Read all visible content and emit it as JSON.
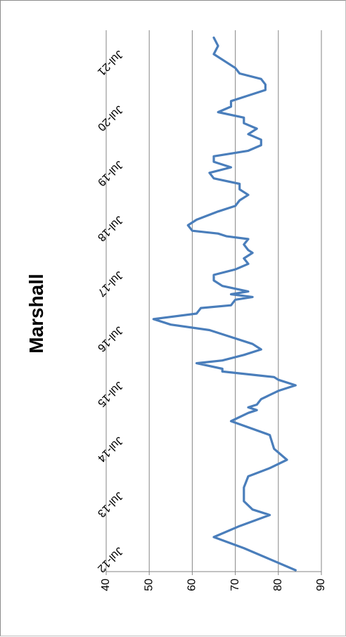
{
  "chart_data": {
    "type": "line",
    "title": "Marshall",
    "orientation": "rotated-90-clockwise",
    "value_axis": {
      "min": 40,
      "max": 90,
      "ticks": [
        40,
        50,
        60,
        70,
        80,
        90
      ]
    },
    "category_ticks": [
      "Jul-12",
      "Jul-13",
      "Jul-14",
      "Jul-15",
      "Jul-16",
      "Jul-17",
      "Jul-18",
      "Jul-19",
      "Jul-20",
      "Jul-21"
    ],
    "grid": true,
    "series_color": "#4a7ebb",
    "series": [
      {
        "x": [
          2012.0,
          2012.2,
          2012.4,
          2012.6,
          2012.8,
          2013.0,
          2013.1,
          2013.25,
          2013.5,
          2013.7,
          2013.85,
          2014.0,
          2014.2,
          2014.45,
          2014.7,
          2014.85,
          2014.9,
          2014.95,
          2015.0,
          2015.1,
          2015.25,
          2015.35,
          2015.45,
          2015.5,
          2015.6,
          2015.65,
          2015.75,
          2015.8,
          2015.9,
          2016.0,
          2016.1,
          2016.25,
          2016.35,
          2016.45,
          2016.55,
          2016.65,
          2016.75,
          2016.8,
          2016.9,
          2016.95,
          2017.0,
          2017.05,
          2017.15,
          2017.25,
          2017.35,
          2017.45,
          2017.55,
          2017.65,
          2017.75,
          2017.8,
          2017.9,
          2018.0,
          2018.05,
          2018.1,
          2018.15,
          2018.25,
          2018.35,
          2018.5,
          2018.6,
          2018.7,
          2018.8,
          2018.9,
          2019.0,
          2019.1,
          2019.2,
          2019.3,
          2019.4,
          2019.5,
          2019.6,
          2019.7,
          2019.8,
          2019.9,
          2020.0,
          2020.1,
          2020.2,
          2020.3,
          2020.4,
          2020.5,
          2020.6,
          2020.7,
          2020.8,
          2020.9,
          2021.0,
          2021.1,
          2021.2,
          2021.35,
          2021.5,
          2021.65
        ],
        "values": [
          84,
          78,
          72,
          65,
          71,
          78,
          74,
          72,
          72,
          73,
          78,
          82,
          79,
          78,
          69,
          73,
          75,
          73,
          75,
          76,
          80,
          84,
          80,
          79,
          67,
          67,
          61,
          67,
          72,
          76,
          74,
          68,
          64,
          55,
          51,
          61,
          62,
          69,
          70,
          74,
          69,
          73,
          67,
          65,
          65,
          70,
          73,
          72,
          74,
          73,
          72,
          73,
          68,
          66,
          60,
          59,
          61,
          66,
          70,
          71,
          73,
          71,
          71,
          65,
          64,
          69,
          65,
          65,
          73,
          76,
          76,
          73,
          75,
          72,
          72,
          66,
          69,
          69,
          73,
          77,
          77,
          76,
          71,
          70,
          68,
          65,
          66,
          65
        ]
      }
    ]
  }
}
